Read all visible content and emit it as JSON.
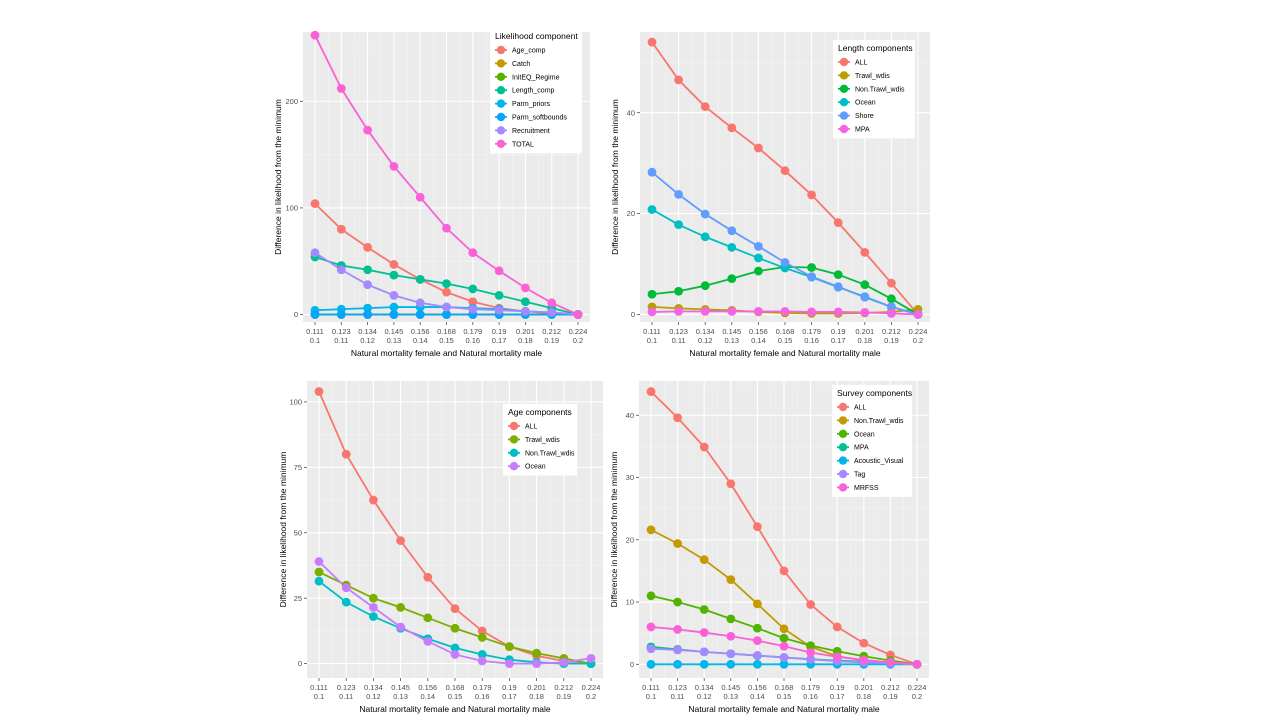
{
  "chart_data": [
    {
      "type": "line",
      "xlabel": "Natural mortality female and Natural mortality male",
      "ylabel": "Difference in likelihood from the minimum",
      "x_tick_labels_top": [
        "0.111",
        "0.123",
        "0.134",
        "0.145",
        "0.156",
        "0.168",
        "0.179",
        "0.19",
        "0.201",
        "0.212",
        "0.224"
      ],
      "x_tick_labels_bottom": [
        "0.1",
        "0.11",
        "0.12",
        "0.13",
        "0.14",
        "0.15",
        "0.16",
        "0.17",
        "0.18",
        "0.19",
        "0.2"
      ],
      "ylim": [
        -7,
        265
      ],
      "yticks": [
        0,
        100,
        200
      ],
      "grid": true,
      "legend": {
        "title": "Likelihood component",
        "placement": "top-right"
      },
      "series": [
        {
          "name": "Age_comp",
          "color": "#F8766D",
          "values": [
            104,
            80,
            63,
            47,
            33,
            21,
            12,
            6,
            3,
            1,
            0
          ]
        },
        {
          "name": "Catch",
          "color": "#C49A00",
          "values": [
            0,
            0,
            0,
            0,
            0,
            0,
            0,
            0,
            0,
            0,
            0
          ]
        },
        {
          "name": "InitEQ_Regime",
          "color": "#53B400",
          "values": [
            0,
            0,
            0,
            0,
            0,
            0,
            0,
            0,
            0,
            0,
            0
          ]
        },
        {
          "name": "Length_comp",
          "color": "#00C094",
          "values": [
            54,
            46,
            42,
            37,
            33,
            29,
            24,
            18,
            12,
            6,
            0
          ]
        },
        {
          "name": "Parm_priors",
          "color": "#00B6EB",
          "values": [
            4,
            5,
            6,
            7,
            7,
            7,
            6,
            5,
            3,
            2,
            0
          ]
        },
        {
          "name": "Parm_softbounds",
          "color": "#06A4FF",
          "values": [
            0,
            0,
            0,
            0,
            0,
            0,
            0,
            0,
            0,
            0,
            0
          ]
        },
        {
          "name": "Recruitment",
          "color": "#A58AFF",
          "values": [
            58,
            42,
            28,
            18,
            11,
            7,
            5,
            4,
            3,
            2,
            0
          ]
        },
        {
          "name": "TOTAL",
          "color": "#FB61D7",
          "values": [
            262,
            212,
            173,
            139,
            110,
            81,
            58,
            41,
            25,
            11,
            0
          ]
        }
      ]
    },
    {
      "type": "line",
      "xlabel": "Natural mortality female and Natural mortality male",
      "ylabel": "Difference in likelihood from the minimum",
      "x_tick_labels_top": [
        "0.111",
        "0.123",
        "0.134",
        "0.145",
        "0.156",
        "0.168",
        "0.179",
        "0.19",
        "0.201",
        "0.212",
        "0.224"
      ],
      "x_tick_labels_bottom": [
        "0.1",
        "0.11",
        "0.12",
        "0.13",
        "0.14",
        "0.15",
        "0.16",
        "0.17",
        "0.18",
        "0.19",
        "0.2"
      ],
      "ylim": [
        -1.5,
        56
      ],
      "yticks": [
        0,
        20,
        40
      ],
      "grid": true,
      "legend": {
        "title": "Length components",
        "placement": "top-right"
      },
      "series": [
        {
          "name": "ALL",
          "color": "#F8766D",
          "values": [
            54,
            46.5,
            41.2,
            37,
            33,
            28.5,
            23.7,
            18.2,
            12.3,
            6.2,
            0
          ]
        },
        {
          "name": "Trawl_wdis",
          "color": "#B79F00",
          "values": [
            1.5,
            1.2,
            1,
            0.8,
            0.5,
            0.3,
            0.2,
            0.2,
            0.3,
            0.5,
            1
          ]
        },
        {
          "name": "Non.Trawl_wdis",
          "color": "#00BA38",
          "values": [
            4,
            4.6,
            5.7,
            7.1,
            8.6,
            9.4,
            9.3,
            7.9,
            5.9,
            3.1,
            0
          ]
        },
        {
          "name": "Ocean",
          "color": "#00BFC4",
          "values": [
            20.8,
            17.8,
            15.4,
            13.3,
            11.2,
            9.2,
            7.4,
            5.4,
            3.5,
            1.5,
            0
          ]
        },
        {
          "name": "Shore",
          "color": "#619CFF",
          "values": [
            28.2,
            23.8,
            19.9,
            16.6,
            13.5,
            10.3,
            7.5,
            5.5,
            3.4,
            1.5,
            0
          ]
        },
        {
          "name": "MPA",
          "color": "#F564E3",
          "values": [
            0.5,
            0.6,
            0.6,
            0.6,
            0.6,
            0.6,
            0.5,
            0.5,
            0.4,
            0.2,
            0
          ]
        }
      ]
    },
    {
      "type": "line",
      "xlabel": "Natural mortality female and Natural mortality male",
      "ylabel": "Difference in likelihood from the minimum",
      "x_tick_labels_top": [
        "0.111",
        "0.123",
        "0.134",
        "0.145",
        "0.156",
        "0.168",
        "0.179",
        "0.19",
        "0.201",
        "0.212",
        "0.224"
      ],
      "x_tick_labels_bottom": [
        "0.1",
        "0.11",
        "0.12",
        "0.13",
        "0.14",
        "0.15",
        "0.16",
        "0.17",
        "0.18",
        "0.19",
        "0.2"
      ],
      "ylim": [
        -5.5,
        108
      ],
      "yticks": [
        0,
        25,
        50,
        75,
        100
      ],
      "grid": true,
      "legend": {
        "title": "Age components",
        "placement": "top-right"
      },
      "series": [
        {
          "name": "ALL",
          "color": "#F8766D",
          "values": [
            104,
            80,
            62.5,
            47,
            33,
            21,
            12.5,
            6.5,
            3,
            1,
            0
          ]
        },
        {
          "name": "Trawl_wdis",
          "color": "#7CAE00",
          "values": [
            35,
            30,
            25,
            21.5,
            17.5,
            13.5,
            10,
            6.5,
            4,
            2,
            0
          ]
        },
        {
          "name": "Non.Trawl_wdis",
          "color": "#00BFC4",
          "values": [
            31.5,
            23.5,
            18,
            13.5,
            9.5,
            6,
            3.5,
            1.5,
            0.5,
            0,
            0
          ]
        },
        {
          "name": "Ocean",
          "color": "#C77CFF",
          "values": [
            39,
            29,
            21.5,
            14,
            8.5,
            3.5,
            1,
            0,
            0,
            0.5,
            2
          ]
        }
      ]
    },
    {
      "type": "line",
      "xlabel": "Natural mortality female and Natural mortality male",
      "ylabel": "Difference in likelihood from the minimum",
      "x_tick_labels_top": [
        "0.111",
        "0.123",
        "0.134",
        "0.145",
        "0.156",
        "0.168",
        "0.179",
        "0.19",
        "0.201",
        "0.212",
        "0.224"
      ],
      "x_tick_labels_bottom": [
        "0.1",
        "0.11",
        "0.12",
        "0.13",
        "0.14",
        "0.15",
        "0.16",
        "0.17",
        "0.18",
        "0.19",
        "0.2"
      ],
      "ylim": [
        -2.2,
        45.5
      ],
      "yticks": [
        0,
        10,
        20,
        30,
        40
      ],
      "grid": true,
      "legend": {
        "title": "Survey components",
        "placement": "top-right"
      },
      "series": [
        {
          "name": "ALL",
          "color": "#F8766D",
          "values": [
            43.8,
            39.6,
            34.9,
            29,
            22.1,
            15,
            9.6,
            6,
            3.4,
            1.5,
            0
          ]
        },
        {
          "name": "Non.Trawl_wdis",
          "color": "#C49A00",
          "values": [
            21.6,
            19.4,
            16.8,
            13.6,
            9.7,
            5.7,
            2.8,
            1.3,
            0.6,
            0.2,
            0
          ]
        },
        {
          "name": "Ocean",
          "color": "#53B400",
          "values": [
            11,
            10,
            8.8,
            7.3,
            5.8,
            4.2,
            3,
            2.1,
            1.3,
            0.6,
            0
          ]
        },
        {
          "name": "MPA",
          "color": "#00C094",
          "values": [
            2.8,
            2.4,
            2,
            1.7,
            1.4,
            1.1,
            0.8,
            0.6,
            0.4,
            0.2,
            0
          ]
        },
        {
          "name": "Acoustic_Visual",
          "color": "#00B6EB",
          "values": [
            0,
            0,
            0,
            0,
            0,
            0,
            0,
            0,
            0,
            0,
            0
          ]
        },
        {
          "name": "Tag",
          "color": "#A58AFF",
          "values": [
            2.5,
            2.3,
            2,
            1.7,
            1.4,
            1.1,
            0.8,
            0.5,
            0.3,
            0.2,
            0
          ]
        },
        {
          "name": "MRFSS",
          "color": "#FB61D7",
          "values": [
            6,
            5.6,
            5.1,
            4.5,
            3.8,
            2.9,
            1.9,
            1.2,
            0.7,
            0.3,
            0
          ]
        }
      ]
    }
  ]
}
